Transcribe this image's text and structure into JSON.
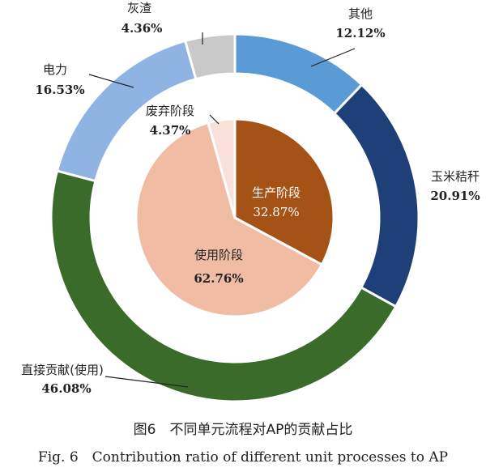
{
  "chart_data": {
    "type": "pie",
    "outer_ring": [
      {
        "label": "其他",
        "value": 12.12,
        "display": "12.12%",
        "color": "#5b9bd5"
      },
      {
        "label": "玉米秸秆",
        "value": 20.91,
        "display": "20.91%",
        "color": "#1f3f79"
      },
      {
        "label": "直接贡献(使用)",
        "value": 46.08,
        "display": "46.08%",
        "color": "#3a6b2a"
      },
      {
        "label": "电力",
        "value": 16.53,
        "display": "16.53%",
        "color": "#8fb4e3"
      },
      {
        "label": "灰渣",
        "value": 4.36,
        "display": "4.36%",
        "color": "#c9c9c9"
      }
    ],
    "inner_pie": [
      {
        "label": "生产阶段",
        "value": 32.87,
        "display": "32.87%",
        "color": "#a45215"
      },
      {
        "label": "使用阶段",
        "value": 62.76,
        "display": "62.76%",
        "color": "#f1bca4"
      },
      {
        "label": "废弃阶段",
        "value": 4.37,
        "display": "4.37%",
        "color": "#f9e1d9"
      }
    ]
  },
  "caption": {
    "cn": "图6　不同单元流程对AP的贡献占比",
    "en": "Fig. 6　Contribution ratio of different unit processes to AP"
  }
}
